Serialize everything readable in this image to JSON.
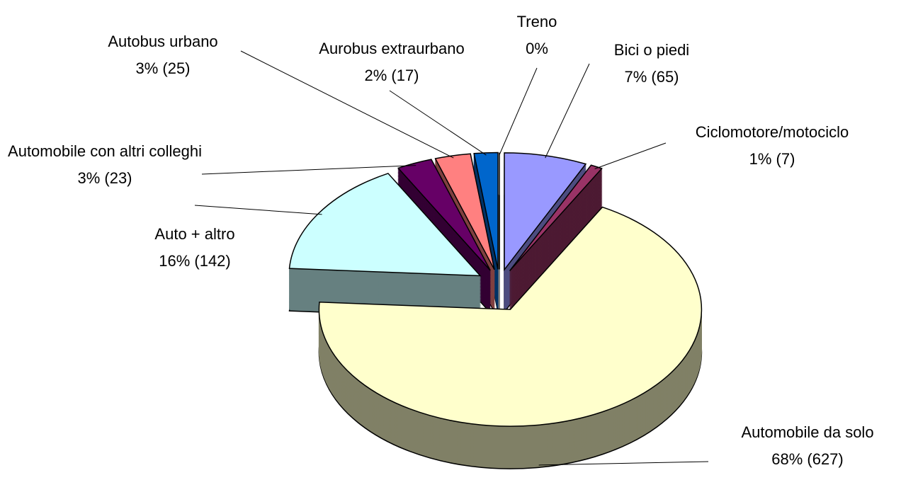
{
  "chart_data": {
    "type": "pie3d",
    "categories": [
      "Bici o piedi",
      "Ciclomotore/motociclo",
      "Automobile da solo",
      "Auto + altro",
      "Automobile con altri colleghi",
      "Autobus urbano",
      "Aurobus extraurbano",
      "Treno"
    ],
    "values": [
      7,
      1,
      68,
      16,
      3,
      3,
      2,
      0
    ],
    "value_labels": [
      "7%  (65)",
      "1%  (7)",
      "68%  (627)",
      "16%  (142)",
      "3%  (23)",
      "3%  (25)",
      "2%  (17)",
      "0%"
    ],
    "colors": [
      "#9999ff",
      "#993366",
      "#ffffcc",
      "#ccffff",
      "#660066",
      "#ff8080",
      "#0066cc",
      "#ffffff"
    ]
  }
}
